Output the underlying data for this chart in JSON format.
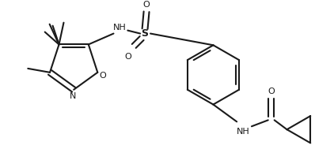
{
  "bg_color": "#ffffff",
  "line_color": "#1a1a1a",
  "line_width": 1.5,
  "figsize": [
    4.22,
    1.89
  ],
  "dpi": 100,
  "xlim": [
    0,
    422
  ],
  "ylim": [
    0,
    189
  ]
}
